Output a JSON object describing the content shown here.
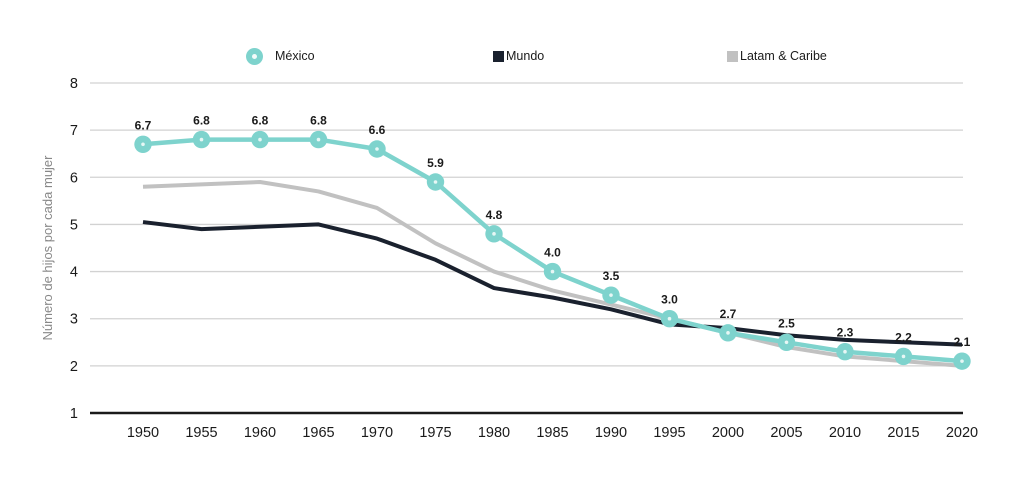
{
  "colors": {
    "mexico": "#7ED3CD",
    "mundo": "#1A212E",
    "latam": "#C1C1C1",
    "grid": "#D2D2D2",
    "axis": "#1A1A1A",
    "tick_text": "#1A1A1A",
    "axis_title_text": "#888888",
    "point_label_text": "#1B1B1B",
    "marker_center_dot": "#F3FBFA"
  },
  "chart_data": {
    "type": "line",
    "title": "",
    "x": [
      1950,
      1955,
      1960,
      1965,
      1970,
      1975,
      1980,
      1985,
      1990,
      1995,
      2000,
      2005,
      2010,
      2015,
      2020
    ],
    "xlabel": "",
    "ylabel": "Número de hijos por cada mujer",
    "ylim": [
      1,
      8
    ],
    "yticks": [
      1,
      2,
      3,
      4,
      5,
      6,
      7,
      8
    ],
    "grid": "horizontal-only",
    "legend_position": "top",
    "series": [
      {
        "name": "México",
        "color_key": "mexico",
        "marker": "circle",
        "show_point_labels": true,
        "values": [
          6.7,
          6.8,
          6.8,
          6.8,
          6.6,
          5.9,
          4.8,
          4.0,
          3.5,
          3.0,
          2.7,
          2.5,
          2.3,
          2.2,
          2.1
        ],
        "point_labels": [
          "6.7",
          "6.8",
          "6.8",
          "6.8",
          "6.6",
          "5.9",
          "4.8",
          "4.0",
          "3.5",
          "3.0",
          "2.7",
          "2.5",
          "2.3",
          "2.2",
          "2.1"
        ]
      },
      {
        "name": "Mundo",
        "color_key": "mundo",
        "marker": "square",
        "show_point_labels": false,
        "values": [
          5.05,
          4.9,
          4.95,
          5.0,
          4.7,
          4.25,
          3.65,
          3.45,
          3.2,
          2.88,
          2.8,
          2.65,
          2.55,
          2.5,
          2.45
        ]
      },
      {
        "name": "Latam & Caribe",
        "color_key": "latam",
        "marker": "square",
        "show_point_labels": false,
        "values": [
          5.8,
          5.85,
          5.9,
          5.7,
          5.35,
          4.6,
          4.0,
          3.6,
          3.3,
          3.0,
          2.7,
          2.4,
          2.2,
          2.1,
          2.0
        ]
      }
    ]
  }
}
